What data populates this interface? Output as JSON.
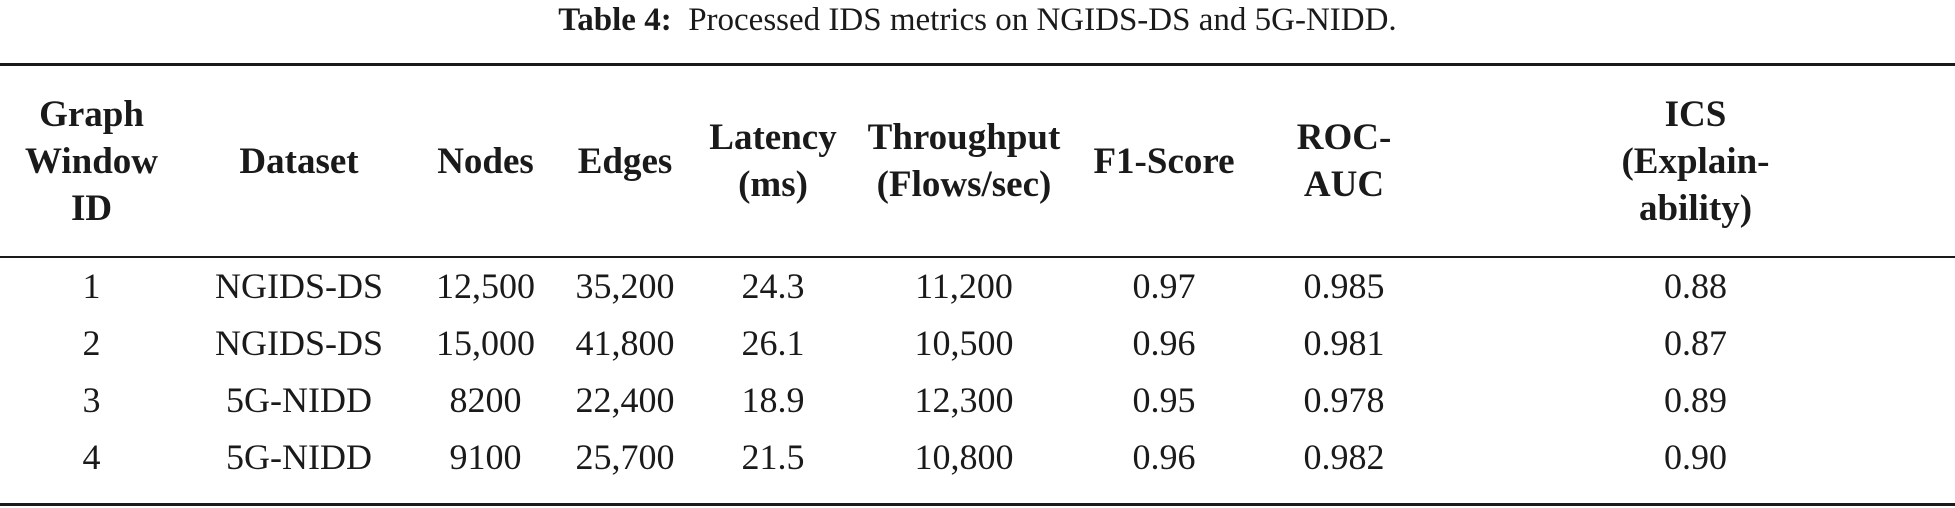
{
  "caption": {
    "label": "Table 4:",
    "text": "Processed IDS metrics on NGIDS-DS and 5G-NIDD."
  },
  "table": {
    "headers": [
      [
        "Graph",
        "Window ID"
      ],
      [
        "Dataset"
      ],
      [
        "Nodes"
      ],
      [
        "Edges"
      ],
      [
        "Latency",
        "(ms)"
      ],
      [
        "Throughput",
        "(Flows/sec)"
      ],
      [
        "F1-Score"
      ],
      [
        "ROC-",
        "AUC"
      ],
      [
        "ICS",
        "(Explain-",
        "ability)"
      ]
    ],
    "rows": [
      [
        "1",
        "NGIDS-DS",
        "12,500",
        "35,200",
        "24.3",
        "11,200",
        "0.97",
        "0.985",
        "0.88"
      ],
      [
        "2",
        "NGIDS-DS",
        "15,000",
        "41,800",
        "26.1",
        "10,500",
        "0.96",
        "0.981",
        "0.87"
      ],
      [
        "3",
        "5G-NIDD",
        "8200",
        "22,400",
        "18.9",
        "12,300",
        "0.95",
        "0.978",
        "0.89"
      ],
      [
        "4",
        "5G-NIDD",
        "9100",
        "25,700",
        "21.5",
        "10,800",
        "0.96",
        "0.982",
        "0.90"
      ]
    ]
  }
}
